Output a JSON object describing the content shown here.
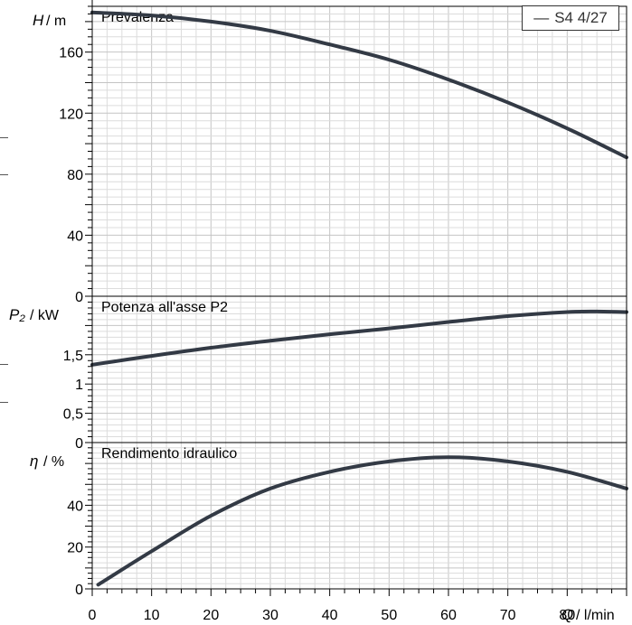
{
  "legend": {
    "marker": "—",
    "label": "S4 4/27"
  },
  "colors": {
    "curve": "#333a45",
    "grid_minor": "#dcdcdc",
    "grid_major": "#c4c4c4",
    "frame": "#000000"
  },
  "x_axis": {
    "symbol": "Q",
    "unit": "/ l/min",
    "ticks": [
      "0",
      "10",
      "20",
      "30",
      "40",
      "50",
      "60",
      "70",
      "80"
    ],
    "range": [
      0,
      90
    ]
  },
  "chart_data": [
    {
      "type": "line",
      "panel": "H",
      "title": "Prevalenza",
      "ylabel_symbol": "H",
      "ylabel_unit": "/ m",
      "ylim": [
        0,
        190
      ],
      "yticks": [
        "0",
        "40",
        "80",
        "120",
        "160"
      ],
      "grid": true,
      "series": [
        {
          "name": "S4 4/27",
          "x": [
            0,
            10,
            20,
            30,
            40,
            50,
            60,
            70,
            80,
            90
          ],
          "y": [
            186,
            184,
            180,
            174,
            165,
            155,
            142,
            127,
            110,
            91
          ]
        }
      ]
    },
    {
      "type": "line",
      "panel": "P2",
      "title": "Potenza all'asse P2",
      "ylabel_symbol": "P₂",
      "ylabel_unit": "/ kW",
      "ylim": [
        0,
        2.5
      ],
      "yticks": [
        "0",
        "0,5",
        "1",
        "1,5"
      ],
      "grid": true,
      "series": [
        {
          "name": "S4 4/27",
          "x": [
            0,
            10,
            20,
            30,
            40,
            50,
            60,
            70,
            80,
            85,
            90
          ],
          "y": [
            1.33,
            1.48,
            1.62,
            1.74,
            1.85,
            1.95,
            2.06,
            2.16,
            2.23,
            2.24,
            2.23
          ]
        }
      ]
    },
    {
      "type": "line",
      "panel": "eta",
      "title": "Rendimento idraulico",
      "ylabel_symbol": "η",
      "ylabel_unit": "/ %",
      "ylim": [
        0,
        70
      ],
      "yticks": [
        "0",
        "20",
        "40"
      ],
      "grid": true,
      "series": [
        {
          "name": "S4 4/27",
          "x": [
            1,
            10,
            20,
            30,
            40,
            50,
            60,
            70,
            80,
            90
          ],
          "y": [
            2,
            18,
            35,
            48,
            56,
            61,
            63,
            61,
            56,
            48
          ]
        }
      ]
    }
  ]
}
